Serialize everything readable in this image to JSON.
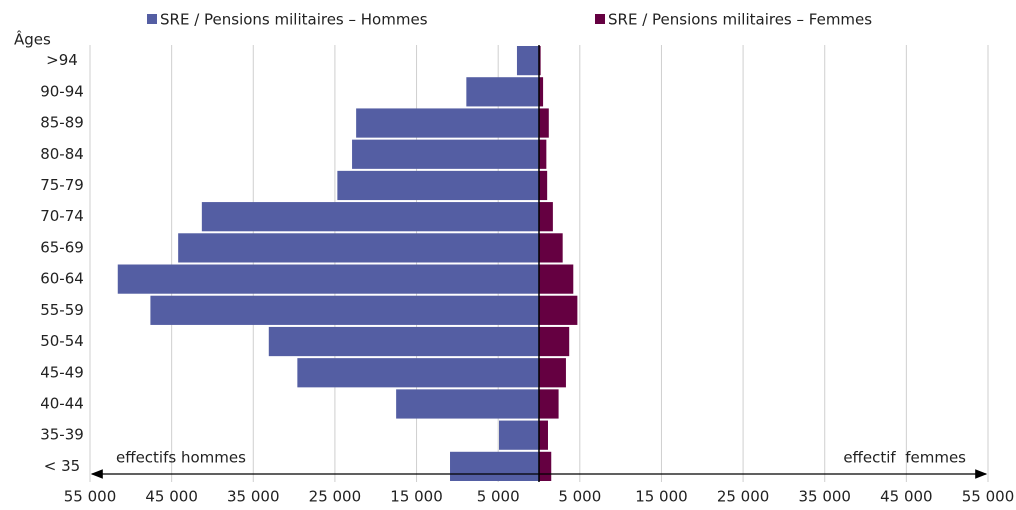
{
  "chart_data": {
    "type": "pyramid",
    "y_label": "Âges",
    "categories": [
      ">94",
      "90-94",
      "85-89",
      "80-84",
      "75-79",
      "70-74",
      "65-69",
      "60-64",
      "55-59",
      "50-54",
      "45-49",
      "40-44",
      "35-39",
      "< 35"
    ],
    "series": [
      {
        "name": "SRE / Pensions militaires – Hommes",
        "color": "#545ea3",
        "side": "left",
        "values": [
          2700,
          8900,
          22400,
          22900,
          24700,
          41300,
          44200,
          51600,
          47600,
          33100,
          29600,
          17500,
          4900,
          10900
        ]
      },
      {
        "name": "SRE / Pensions militaires – Femmes",
        "color": "#650041",
        "side": "right",
        "values": [
          200,
          500,
          1200,
          900,
          1000,
          1700,
          2900,
          4200,
          4700,
          3700,
          3300,
          2400,
          1100,
          1500
        ]
      }
    ],
    "xlim": [
      -55000,
      55000
    ],
    "xticks": [
      {
        "value": -55000,
        "label": "55 000"
      },
      {
        "value": -45000,
        "label": "45 000"
      },
      {
        "value": -35000,
        "label": "35 000"
      },
      {
        "value": -25000,
        "label": "25 000"
      },
      {
        "value": -15000,
        "label": "15 000"
      },
      {
        "value": -5000,
        "label": "5 000"
      },
      {
        "value": 5000,
        "label": "5 000"
      },
      {
        "value": 15000,
        "label": "15 000"
      },
      {
        "value": 25000,
        "label": "25 000"
      },
      {
        "value": 35000,
        "label": "35 000"
      },
      {
        "value": 45000,
        "label": "45 000"
      },
      {
        "value": 55000,
        "label": "55 000"
      }
    ],
    "grid": true,
    "annotations": [
      "effectifs hommes",
      "effectif  femmes"
    ]
  }
}
